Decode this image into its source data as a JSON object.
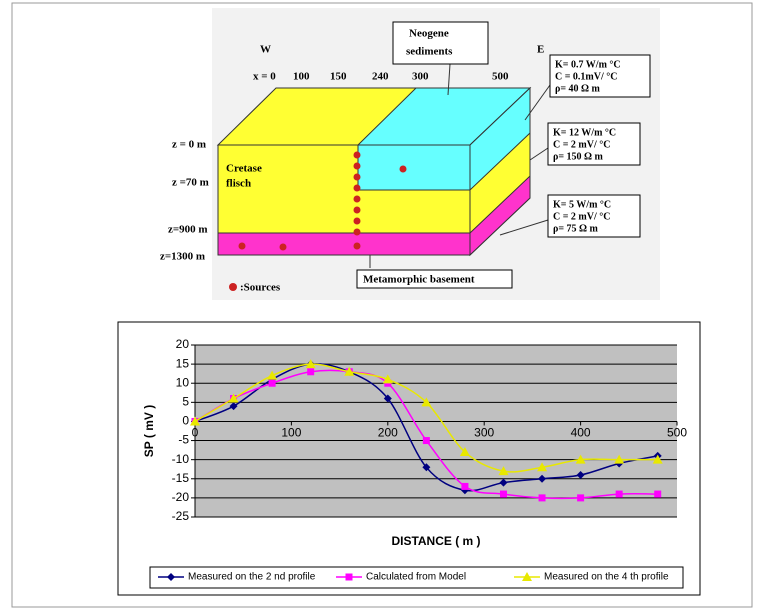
{
  "diagram": {
    "west": "W",
    "east": "E",
    "x_labels": [
      "x = 0",
      "100",
      "150",
      "240",
      "300",
      "500"
    ],
    "z_labels": [
      "z = 0 m",
      "z =70 m",
      "z=900 m",
      "z=1300 m"
    ],
    "neogene": [
      "Neogene",
      "sediments"
    ],
    "cretase": [
      "Cretase",
      "flisch"
    ],
    "basement": "Metamorphic basement",
    "sources": ":Sources",
    "boxes": [
      [
        "K= 0.7 W/m °C",
        "C = 0.1mV/ °C",
        "ρ= 40 Ω m"
      ],
      [
        "K= 12 W/m °C",
        "C = 2 mV/ °C",
        "ρ= 150 Ω m"
      ],
      [
        "K= 5 W/m °C",
        "C = 2 mV/ °C",
        "ρ= 75 Ω m"
      ]
    ]
  },
  "chart_data": {
    "type": "line",
    "x": [
      0,
      40,
      80,
      120,
      160,
      200,
      240,
      280,
      320,
      360,
      400,
      440,
      480
    ],
    "xlabel": "DISTANCE ( m )",
    "ylabel": "SP ( mV )",
    "xlim": [
      0,
      500
    ],
    "xticks": [
      0,
      100,
      200,
      300,
      400,
      500
    ],
    "ylim": [
      -25,
      20
    ],
    "yticks": [
      -25,
      -20,
      -15,
      -10,
      -5,
      0,
      5,
      10,
      15,
      20
    ],
    "grid": true,
    "legend": "bottom",
    "series": [
      {
        "name": "Measured on the 2 nd profile",
        "color": "#000080",
        "marker": "diamond",
        "values": [
          0,
          4,
          11,
          15,
          13,
          6,
          -12,
          -18,
          -16,
          -15,
          -14,
          -11,
          -9
        ]
      },
      {
        "name": "Calculated from Model",
        "color": "#ff00ff",
        "marker": "square",
        "values": [
          0,
          6,
          10,
          13,
          13,
          10,
          -5,
          -17,
          -19,
          -20,
          -20,
          -19,
          -19
        ]
      },
      {
        "name": "Measured on the 4 th profile",
        "color": "#e8e800",
        "marker": "triangle",
        "values": [
          0,
          6,
          12,
          15,
          13,
          11,
          5,
          -8,
          -13,
          -12,
          -10,
          -10,
          -10
        ]
      }
    ]
  }
}
